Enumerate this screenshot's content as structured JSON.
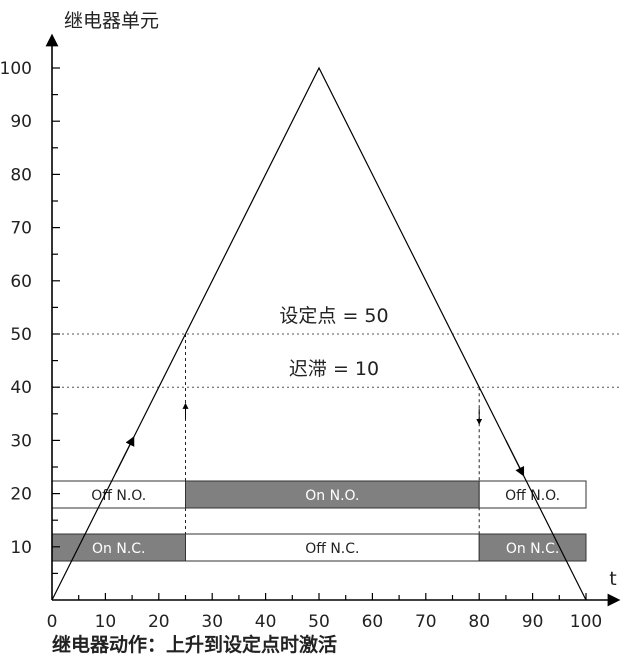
{
  "y_axis_label": "继电器单元",
  "x_axis_label": "t",
  "x_ticks": [
    "0",
    "10",
    "20",
    "30",
    "40",
    "50",
    "60",
    "70",
    "80",
    "90",
    "100"
  ],
  "y_ticks": [
    "10",
    "20",
    "30",
    "40",
    "50",
    "60",
    "70",
    "80",
    "90",
    "100"
  ],
  "setpoint_label": "设定点 = 50",
  "hysteresis_label": "迟滞 = 10",
  "caption": "继电器动作：上升到设定点时激活",
  "bands": {
    "no": [
      "Off N.O.",
      "On N.O.",
      "Off N.O."
    ],
    "nc": [
      "On N.C.",
      "Off N.C.",
      "On N.C."
    ]
  },
  "chart_data": {
    "type": "line",
    "xlim": [
      0,
      100
    ],
    "ylim": [
      0,
      100
    ],
    "series": [
      {
        "x": [
          0,
          50,
          100
        ],
        "y": [
          0,
          100,
          0
        ]
      }
    ],
    "reference_lines": [
      {
        "axis": "y",
        "value": 50,
        "label": "设定点 = 50"
      },
      {
        "axis": "y",
        "value": 40,
        "label": "迟滞 = 10"
      }
    ],
    "switch_points_x": [
      25,
      80
    ],
    "switch_states": {
      "normally_open": [
        {
          "from": 0,
          "to": 25,
          "state": "Off N.O."
        },
        {
          "from": 25,
          "to": 80,
          "state": "On N.O."
        },
        {
          "from": 80,
          "to": 100,
          "state": "Off N.O."
        }
      ],
      "normally_closed": [
        {
          "from": 0,
          "to": 25,
          "state": "On N.C."
        },
        {
          "from": 25,
          "to": 80,
          "state": "Off N.C."
        },
        {
          "from": 80,
          "to": 100,
          "state": "On N.C."
        }
      ]
    },
    "colors": {
      "on": "#808080",
      "off": "#ffffff",
      "line": "#000000"
    }
  }
}
